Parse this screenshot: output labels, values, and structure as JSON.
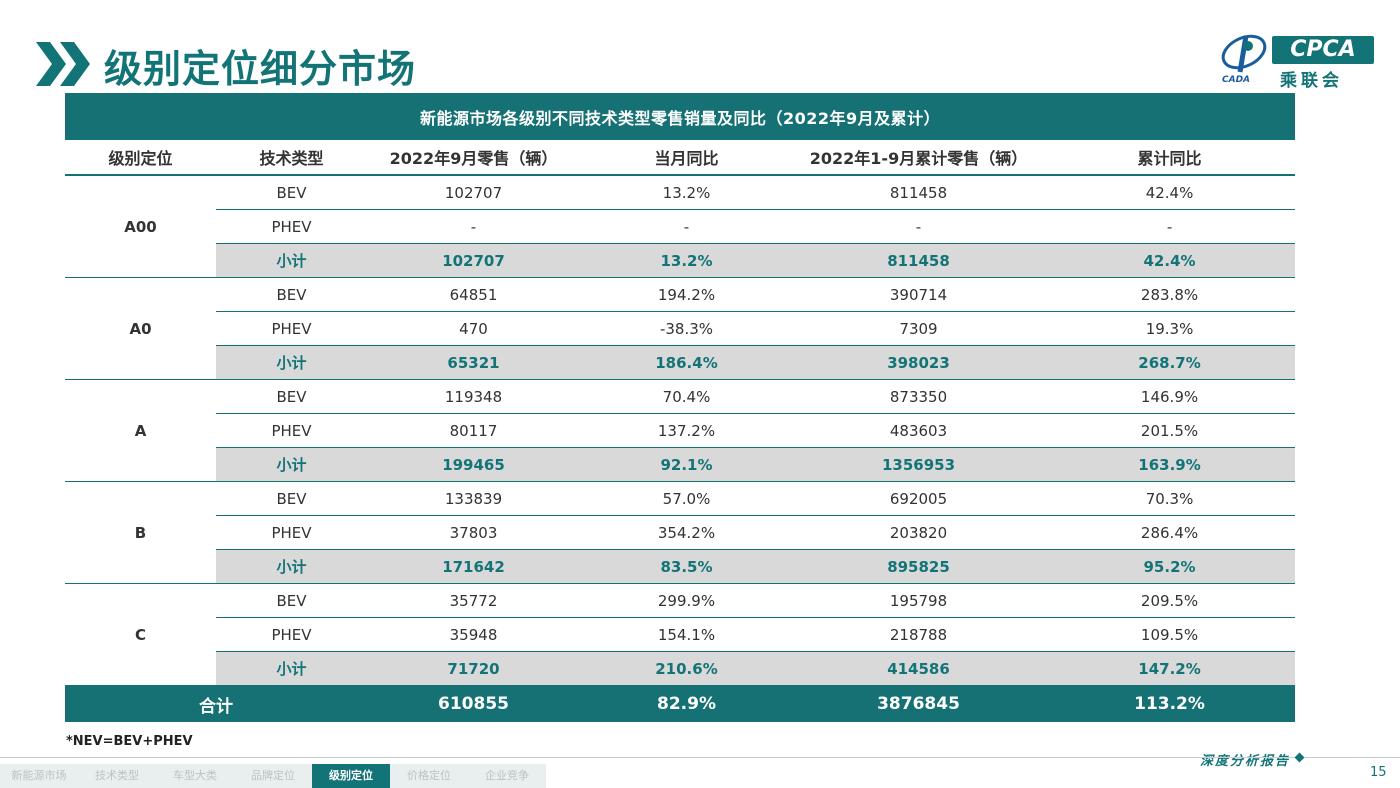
{
  "header": {
    "title": "级别定位细分市场",
    "logo_text": "CPCA",
    "logo_cn": "乘联会",
    "logo_sub": "CADA"
  },
  "table": {
    "caption": "新能源市场各级别不同技术类型零售销量及同比（2022年9月及累计）",
    "columns": [
      "级别定位",
      "技术类型",
      "2022年9月零售（辆）",
      "当月同比",
      "2022年1-9月累计零售（辆）",
      "累计同比"
    ],
    "groups": [
      {
        "grade": "A00",
        "rows": [
          {
            "type": "BEV",
            "sep": "102707",
            "sep_yoy": "13.2%",
            "ytd": "811458",
            "ytd_yoy": "42.4%"
          },
          {
            "type": "PHEV",
            "sep": "-",
            "sep_yoy": "-",
            "ytd": "-",
            "ytd_yoy": "-"
          },
          {
            "type": "小计",
            "sep": "102707",
            "sep_yoy": "13.2%",
            "ytd": "811458",
            "ytd_yoy": "42.4%"
          }
        ]
      },
      {
        "grade": "A0",
        "rows": [
          {
            "type": "BEV",
            "sep": "64851",
            "sep_yoy": "194.2%",
            "ytd": "390714",
            "ytd_yoy": "283.8%"
          },
          {
            "type": "PHEV",
            "sep": "470",
            "sep_yoy": "-38.3%",
            "ytd": "7309",
            "ytd_yoy": "19.3%"
          },
          {
            "type": "小计",
            "sep": "65321",
            "sep_yoy": "186.4%",
            "ytd": "398023",
            "ytd_yoy": "268.7%"
          }
        ]
      },
      {
        "grade": "A",
        "rows": [
          {
            "type": "BEV",
            "sep": "119348",
            "sep_yoy": "70.4%",
            "ytd": "873350",
            "ytd_yoy": "146.9%"
          },
          {
            "type": "PHEV",
            "sep": "80117",
            "sep_yoy": "137.2%",
            "ytd": "483603",
            "ytd_yoy": "201.5%"
          },
          {
            "type": "小计",
            "sep": "199465",
            "sep_yoy": "92.1%",
            "ytd": "1356953",
            "ytd_yoy": "163.9%"
          }
        ]
      },
      {
        "grade": "B",
        "rows": [
          {
            "type": "BEV",
            "sep": "133839",
            "sep_yoy": "57.0%",
            "ytd": "692005",
            "ytd_yoy": "70.3%"
          },
          {
            "type": "PHEV",
            "sep": "37803",
            "sep_yoy": "354.2%",
            "ytd": "203820",
            "ytd_yoy": "286.4%"
          },
          {
            "type": "小计",
            "sep": "171642",
            "sep_yoy": "83.5%",
            "ytd": "895825",
            "ytd_yoy": "95.2%"
          }
        ]
      },
      {
        "grade": "C",
        "rows": [
          {
            "type": "BEV",
            "sep": "35772",
            "sep_yoy": "299.9%",
            "ytd": "195798",
            "ytd_yoy": "209.5%"
          },
          {
            "type": "PHEV",
            "sep": "35948",
            "sep_yoy": "154.1%",
            "ytd": "218788",
            "ytd_yoy": "109.5%"
          },
          {
            "type": "小计",
            "sep": "71720",
            "sep_yoy": "210.6%",
            "ytd": "414586",
            "ytd_yoy": "147.2%"
          }
        ]
      }
    ],
    "total": {
      "label": "合计",
      "sep": "610855",
      "sep_yoy": "82.9%",
      "ytd": "3876845",
      "ytd_yoy": "113.2%"
    }
  },
  "footnote": "*NEV=BEV+PHEV",
  "report_label": "深度分析报告",
  "nav": {
    "items": [
      "新能源市场",
      "技术类型",
      "车型大类",
      "品牌定位",
      "级别定位",
      "价格定位",
      "企业竞争"
    ],
    "active_index": 4
  },
  "page_number": "15",
  "colors": {
    "accent": "#137478",
    "subtotal_bg": "#d9d9d9",
    "header_bg": "#167174"
  }
}
